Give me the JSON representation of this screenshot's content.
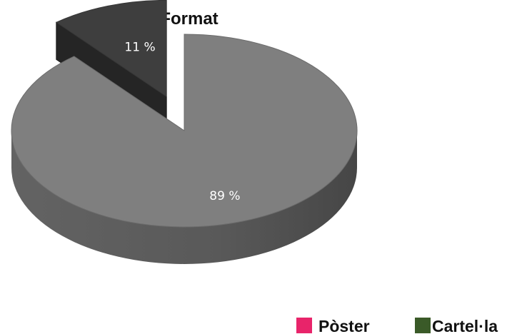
{
  "chart_data": {
    "type": "pie",
    "title": "Format",
    "slices": [
      {
        "name": "Pòster",
        "value": 89,
        "label": "89 %",
        "color": "#e8246a",
        "render_color": "#7f7f7f"
      },
      {
        "name": "Cartel·la",
        "value": 11,
        "label": "11 %",
        "color": "#3a5a28",
        "render_color": "#3e3e3e"
      }
    ],
    "three_d": true,
    "exploded_slice": "Cartel·la",
    "legend": {
      "position": "bottom-right"
    }
  }
}
